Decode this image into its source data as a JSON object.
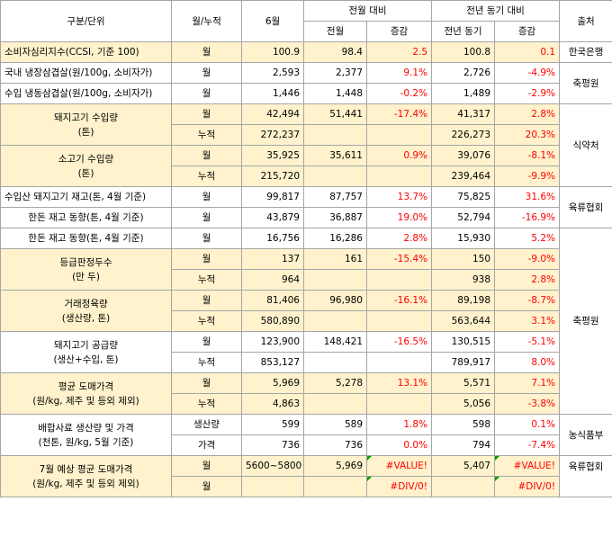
{
  "header": {
    "category": "구분/단위",
    "period": "월/누적",
    "june": "6월",
    "vs_prev_month": "전월 대비",
    "vs_prev_year": "전년 동기 대비",
    "source": "출처",
    "prev_month": "전월",
    "change1": "증감",
    "prev_year": "전년 동기",
    "change2": "증감"
  },
  "rows": [
    {
      "cat": "소비자심리지수(CCSI, 기준 100)",
      "per": "월",
      "june": "100.9",
      "pm": "98.4",
      "pmc": "2.5",
      "py": "100.8",
      "pyc": "0.1",
      "src": "한국은행"
    },
    {
      "cat": "국내 냉장삼겹살(원/100g, 소비자가)",
      "per": "월",
      "june": "2,593",
      "pm": "2,377",
      "pmc": "9.1%",
      "py": "2,726",
      "pyc": "-4.9%"
    },
    {
      "cat": "수입 냉동삼겹살(원/100g, 소비자가)",
      "per": "월",
      "june": "1,446",
      "pm": "1,448",
      "pmc": "-0.2%",
      "py": "1,489",
      "pyc": "-2.9%",
      "src": "축평원"
    },
    {
      "cat1": "돼지고기 수입량",
      "cat2": "(톤)",
      "per": "월",
      "june": "42,494",
      "pm": "51,441",
      "pmc": "-17.4%",
      "py": "41,317",
      "pyc": "2.8%"
    },
    {
      "per": "누적",
      "june": "272,237",
      "pm": "",
      "pmc": "",
      "py": "226,273",
      "pyc": "20.3%"
    },
    {
      "cat1": "소고기 수입량",
      "cat2": "(톤)",
      "per": "월",
      "june": "35,925",
      "pm": "35,611",
      "pmc": "0.9%",
      "py": "39,076",
      "pyc": "-8.1%",
      "src": "식약처"
    },
    {
      "per": "누적",
      "june": "215,720",
      "pm": "",
      "pmc": "",
      "py": "239,464",
      "pyc": "-9.9%"
    },
    {
      "cat": "수입산 돼지고기 재고(톤, 4월 기준)",
      "per": "월",
      "june": "99,817",
      "pm": "87,757",
      "pmc": "13.7%",
      "py": "75,825",
      "pyc": "31.6%",
      "src": "육류협회"
    },
    {
      "cat": "한돈 재고 동향(톤, 4월 기준)",
      "per": "월",
      "june": "43,879",
      "pm": "36,887",
      "pmc": "19.0%",
      "py": "52,794",
      "pyc": "-16.9%"
    },
    {
      "cat": "한돈 재고 동향(톤, 4월 기준)",
      "per": "월",
      "june": "16,756",
      "pm": "16,286",
      "pmc": "2.8%",
      "py": "15,930",
      "pyc": "5.2%"
    },
    {
      "cat1": "등급판정두수",
      "cat2": "(만 두)",
      "per": "월",
      "june": "137",
      "pm": "161",
      "pmc": "-15.4%",
      "py": "150",
      "pyc": "-9.0%"
    },
    {
      "per": "누적",
      "june": "964",
      "pm": "",
      "pmc": "",
      "py": "938",
      "pyc": "2.8%"
    },
    {
      "cat1": "거래정육량",
      "cat2": "(생산량, 톤)",
      "per": "월",
      "june": "81,406",
      "pm": "96,980",
      "pmc": "-16.1%",
      "py": "89,198",
      "pyc": "-8.7%",
      "src": "축평원"
    },
    {
      "per": "누적",
      "june": "580,890",
      "pm": "",
      "pmc": "",
      "py": "563,644",
      "pyc": "3.1%"
    },
    {
      "cat1": "돼지고기 공급량",
      "cat2": "(생산+수입, 톤)",
      "per": "월",
      "june": "123,900",
      "pm": "148,421",
      "pmc": "-16.5%",
      "py": "130,515",
      "pyc": "-5.1%"
    },
    {
      "per": "누적",
      "june": "853,127",
      "pm": "",
      "pmc": "",
      "py": "789,917",
      "pyc": "8.0%"
    },
    {
      "cat1": "평균 도매가격",
      "cat2": "(원/kg, 제주 및 등외 제외)",
      "per": "월",
      "june": "5,969",
      "pm": "5,278",
      "pmc": "13.1%",
      "py": "5,571",
      "pyc": "7.1%"
    },
    {
      "per": "누적",
      "june": "4,863",
      "pm": "",
      "pmc": "",
      "py": "5,056",
      "pyc": "-3.8%"
    },
    {
      "cat1": "배합사료 생산량 및 가격",
      "cat2": "(천톤, 원/kg, 5월 기준)",
      "per": "생산량",
      "june": "599",
      "pm": "589",
      "pmc": "1.8%",
      "py": "598",
      "pyc": "0.1%",
      "src": "농식품부"
    },
    {
      "per": "가격",
      "june": "736",
      "pm": "736",
      "pmc": "0.0%",
      "py": "794",
      "pyc": "-7.4%"
    },
    {
      "cat1": "7월 예상 평균 도매가격",
      "cat2": "(원/kg, 제주 및 등외 제외)",
      "per": "월",
      "june": "5600~5800",
      "pm": "5,969",
      "pmc": "#VALUE!",
      "py": "5,407",
      "pyc": "#VALUE!",
      "src": "육류협회"
    },
    {
      "per": "월",
      "june": "",
      "pm": "",
      "pmc": "#DIV/0!",
      "py": "",
      "pyc": "#DIV/0!"
    }
  ]
}
